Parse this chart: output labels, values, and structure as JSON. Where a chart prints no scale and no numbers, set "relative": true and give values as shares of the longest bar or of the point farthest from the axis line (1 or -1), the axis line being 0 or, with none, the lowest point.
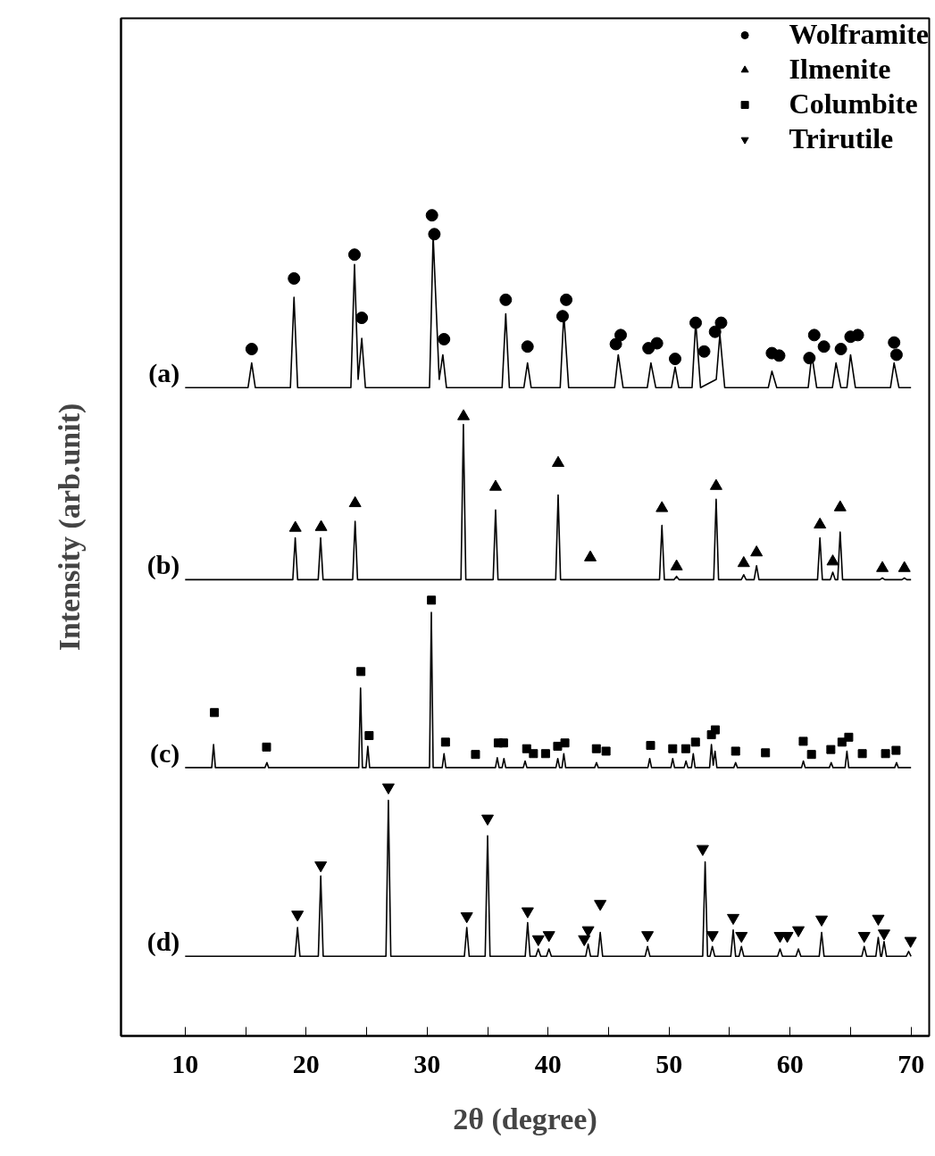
{
  "chart_data": {
    "type": "line",
    "relative": true,
    "xlabel": "2θ (degree)",
    "ylabel": "Intensity (arb.unit)",
    "xlim": [
      4.7,
      71.5
    ],
    "xticks": [
      10,
      {
        "value": 15,
        "label": null
      },
      20,
      {
        "value": 25,
        "label": null
      },
      30,
      {
        "value": 35,
        "label": null
      },
      40,
      {
        "value": 45,
        "label": null
      },
      50,
      {
        "value": 55,
        "label": null
      },
      60,
      {
        "value": 65,
        "label": null
      },
      70
    ],
    "tick_labels": "x",
    "grid": false,
    "legend": "top right",
    "series": [
      {
        "name": "(a)",
        "color": "#000000",
        "x": [
          10,
          15.2,
          15.5,
          15.8,
          18.7,
          19.0,
          19.3,
          23.7,
          24.0,
          24.3,
          24.6,
          24.9,
          30.2,
          30.5,
          31.0,
          31.3,
          31.6,
          36.2,
          36.5,
          36.8,
          38.0,
          38.3,
          38.6,
          41.0,
          41.3,
          41.7,
          45.5,
          45.8,
          46.2,
          48.2,
          48.5,
          48.9,
          50.2,
          50.5,
          50.8,
          51.9,
          52.2,
          52.6,
          53.9,
          54.2,
          54.6,
          58.2,
          58.5,
          58.9,
          61.5,
          61.8,
          62.2,
          63.5,
          63.8,
          64.2,
          64.7,
          65.0,
          65.4,
          68.3,
          68.6,
          69.0,
          70
        ],
        "values": [
          0.79,
          0.79,
          0.82,
          0.79,
          0.79,
          0.9,
          0.79,
          0.79,
          0.94,
          0.8,
          0.85,
          0.79,
          0.79,
          0.975,
          0.8,
          0.83,
          0.79,
          0.79,
          0.88,
          0.79,
          0.79,
          0.82,
          0.79,
          0.79,
          0.88,
          0.79,
          0.79,
          0.83,
          0.79,
          0.79,
          0.82,
          0.79,
          0.79,
          0.815,
          0.79,
          0.79,
          0.87,
          0.79,
          0.8,
          0.855,
          0.79,
          0.79,
          0.81,
          0.79,
          0.79,
          0.83,
          0.79,
          0.79,
          0.82,
          0.79,
          0.79,
          0.83,
          0.79,
          0.79,
          0.82,
          0.79,
          0.79
        ]
      },
      {
        "name": "(b)",
        "color": "#000000",
        "x": [
          10,
          18.9,
          19.1,
          19.3,
          21.0,
          21.2,
          21.4,
          23.85,
          24.05,
          24.25,
          32.8,
          33.0,
          33.2,
          35.46,
          35.66,
          35.86,
          40.63,
          40.83,
          41.03,
          49.21,
          49.41,
          49.61,
          50.42,
          50.62,
          50.82,
          53.69,
          53.89,
          54.09,
          55.97,
          56.17,
          56.37,
          57.03,
          57.23,
          57.43,
          62.27,
          62.47,
          62.67,
          63.33,
          63.53,
          63.73,
          63.94,
          64.14,
          64.34,
          67.43,
          67.63,
          67.83,
          69.25,
          69.45,
          69.65,
          70
        ],
        "values": [
          0.556,
          0.556,
          0.607,
          0.556,
          0.556,
          0.607,
          0.556,
          0.556,
          0.627,
          0.556,
          0.556,
          0.745,
          0.556,
          0.556,
          0.641,
          0.556,
          0.556,
          0.659,
          0.556,
          0.556,
          0.622,
          0.556,
          0.556,
          0.56,
          0.556,
          0.556,
          0.654,
          0.556,
          0.556,
          0.562,
          0.556,
          0.556,
          0.573,
          0.556,
          0.556,
          0.607,
          0.556,
          0.556,
          0.565,
          0.556,
          0.556,
          0.614,
          0.556,
          0.556,
          0.558,
          0.556,
          0.556,
          0.558,
          0.556,
          0.556
        ]
      },
      {
        "name": "(c)",
        "color": "#000000",
        "x": [
          10,
          12.2,
          12.35,
          12.5,
          16.6,
          16.76,
          16.9,
          24.35,
          24.5,
          24.65,
          24.95,
          25.1,
          25.25,
          30.2,
          30.35,
          30.5,
          31.25,
          31.4,
          31.55,
          35.65,
          35.8,
          35.95,
          36.2,
          36.35,
          36.5,
          37.95,
          38.1,
          38.25,
          40.65,
          40.8,
          40.95,
          41.15,
          41.3,
          41.45,
          43.85,
          44.0,
          44.15,
          48.25,
          48.4,
          48.55,
          50.15,
          50.3,
          50.45,
          51.25,
          51.4,
          51.55,
          51.85,
          52.0,
          52.15,
          53.35,
          53.5,
          53.65,
          53.8,
          53.95,
          55.35,
          55.5,
          55.65,
          60.95,
          61.1,
          61.25,
          63.25,
          63.4,
          63.55,
          64.55,
          64.7,
          64.85,
          68.65,
          68.8,
          68.95,
          70
        ],
        "values": [
          0.327,
          0.327,
          0.355,
          0.327,
          0.327,
          0.333,
          0.327,
          0.327,
          0.424,
          0.327,
          0.327,
          0.353,
          0.327,
          0.327,
          0.516,
          0.327,
          0.327,
          0.344,
          0.327,
          0.327,
          0.339,
          0.327,
          0.327,
          0.338,
          0.327,
          0.327,
          0.335,
          0.327,
          0.327,
          0.338,
          0.327,
          0.327,
          0.344,
          0.327,
          0.327,
          0.333,
          0.327,
          0.327,
          0.338,
          0.327,
          0.327,
          0.338,
          0.327,
          0.327,
          0.335,
          0.327,
          0.327,
          0.344,
          0.327,
          0.327,
          0.355,
          0.33,
          0.347,
          0.327,
          0.327,
          0.333,
          0.327,
          0.327,
          0.335,
          0.327,
          0.327,
          0.333,
          0.327,
          0.327,
          0.347,
          0.327,
          0.327,
          0.333,
          0.327,
          0.327
        ]
      },
      {
        "name": "(d)",
        "color": "#000000",
        "x": [
          10,
          19.09,
          19.29,
          19.49,
          21.01,
          21.21,
          21.41,
          26.6,
          26.8,
          27.0,
          33.08,
          33.28,
          33.48,
          34.8,
          35.0,
          35.2,
          38.11,
          38.31,
          38.51,
          38.99,
          39.19,
          39.39,
          39.87,
          40.07,
          40.27,
          43.11,
          43.31,
          43.51,
          44.11,
          44.31,
          44.51,
          48.02,
          48.22,
          48.42,
          52.78,
          52.98,
          53.18,
          53.38,
          53.58,
          53.78,
          55.1,
          55.3,
          55.5,
          55.78,
          55.98,
          56.18,
          58.97,
          59.17,
          59.37,
          60.49,
          60.69,
          60.89,
          62.41,
          62.61,
          62.81,
          65.93,
          66.13,
          66.33,
          67.09,
          67.29,
          67.49,
          67.57,
          67.77,
          67.97,
          69.6,
          69.8,
          70
        ],
        "values": [
          0.097,
          0.097,
          0.132,
          0.097,
          0.097,
          0.195,
          0.097,
          0.097,
          0.287,
          0.097,
          0.097,
          0.132,
          0.097,
          0.097,
          0.244,
          0.097,
          0.097,
          0.138,
          0.097,
          0.097,
          0.106,
          0.097,
          0.097,
          0.106,
          0.097,
          0.097,
          0.112,
          0.097,
          0.097,
          0.126,
          0.097,
          0.097,
          0.109,
          0.097,
          0.097,
          0.212,
          0.097,
          0.097,
          0.109,
          0.097,
          0.097,
          0.129,
          0.097,
          0.097,
          0.109,
          0.097,
          0.097,
          0.106,
          0.097,
          0.097,
          0.106,
          0.097,
          0.097,
          0.126,
          0.097,
          0.097,
          0.109,
          0.097,
          0.097,
          0.12,
          0.097,
          0.097,
          0.115,
          0.097,
          0.097,
          0.103,
          0.097
        ]
      },
      {
        "name": "Wolframite",
        "type": "scatter",
        "marker": "circle",
        "color": "#000000",
        "x": [
          15.5,
          19.0,
          24.0,
          24.6,
          30.4,
          30.6,
          31.4,
          36.5,
          38.3,
          41.5,
          41.2,
          45.6,
          46.0,
          48.3,
          49.0,
          50.5,
          52.2,
          52.9,
          53.8,
          54.3,
          58.5,
          59.1,
          61.6,
          62.0,
          62.8,
          64.2,
          65.0,
          65.6,
          68.6,
          68.8
        ],
        "values": [
          0.837,
          0.923,
          0.952,
          0.875,
          1.0,
          0.977,
          0.849,
          0.897,
          0.84,
          0.897,
          0.877,
          0.843,
          0.854,
          0.838,
          0.844,
          0.825,
          0.869,
          0.834,
          0.858,
          0.869,
          0.832,
          0.829,
          0.826,
          0.854,
          0.84,
          0.837,
          0.852,
          0.854,
          0.845,
          0.83
        ]
      },
      {
        "name": "Ilmenite",
        "type": "scatter",
        "marker": "triangle",
        "color": "#000000",
        "x": [
          19.11,
          21.24,
          24.05,
          33.01,
          35.66,
          40.83,
          43.49,
          49.41,
          50.62,
          53.89,
          56.17,
          57.23,
          62.47,
          63.53,
          64.14,
          67.63,
          69.45
        ],
        "values": [
          0.619,
          0.62,
          0.649,
          0.755,
          0.669,
          0.698,
          0.583,
          0.643,
          0.572,
          0.67,
          0.576,
          0.589,
          0.623,
          0.578,
          0.644,
          0.57,
          0.57
        ]
      },
      {
        "name": "Columbite",
        "type": "scatter",
        "marker": "square",
        "color": "#000000",
        "x": [
          12.42,
          16.73,
          24.53,
          25.21,
          30.36,
          31.52,
          34.0,
          35.88,
          36.32,
          38.23,
          38.79,
          39.79,
          40.79,
          41.39,
          43.99,
          44.79,
          48.47,
          50.3,
          51.38,
          52.18,
          53.5,
          53.82,
          55.5,
          57.97,
          61.09,
          61.77,
          63.37,
          64.29,
          64.85,
          65.97,
          67.89,
          68.76
        ],
        "values": [
          0.394,
          0.352,
          0.444,
          0.366,
          0.531,
          0.358,
          0.343,
          0.357,
          0.357,
          0.35,
          0.344,
          0.344,
          0.353,
          0.357,
          0.35,
          0.347,
          0.354,
          0.35,
          0.35,
          0.358,
          0.367,
          0.373,
          0.347,
          0.345,
          0.359,
          0.343,
          0.349,
          0.358,
          0.364,
          0.344,
          0.344,
          0.348
        ]
      },
      {
        "name": "Trirutile",
        "type": "scatter",
        "marker": "triangle_down",
        "color": "#000000",
        "x": [
          19.29,
          21.21,
          26.8,
          33.28,
          35.0,
          38.31,
          39.19,
          40.07,
          42.99,
          43.31,
          44.31,
          48.22,
          52.78,
          53.58,
          55.3,
          55.98,
          59.17,
          59.77,
          60.69,
          62.61,
          66.13,
          67.29,
          67.77,
          69.96
        ],
        "values": [
          0.148,
          0.208,
          0.303,
          0.146,
          0.265,
          0.152,
          0.118,
          0.123,
          0.118,
          0.129,
          0.161,
          0.123,
          0.228,
          0.123,
          0.144,
          0.122,
          0.122,
          0.122,
          0.129,
          0.142,
          0.122,
          0.143,
          0.125,
          0.116
        ]
      }
    ]
  }
}
